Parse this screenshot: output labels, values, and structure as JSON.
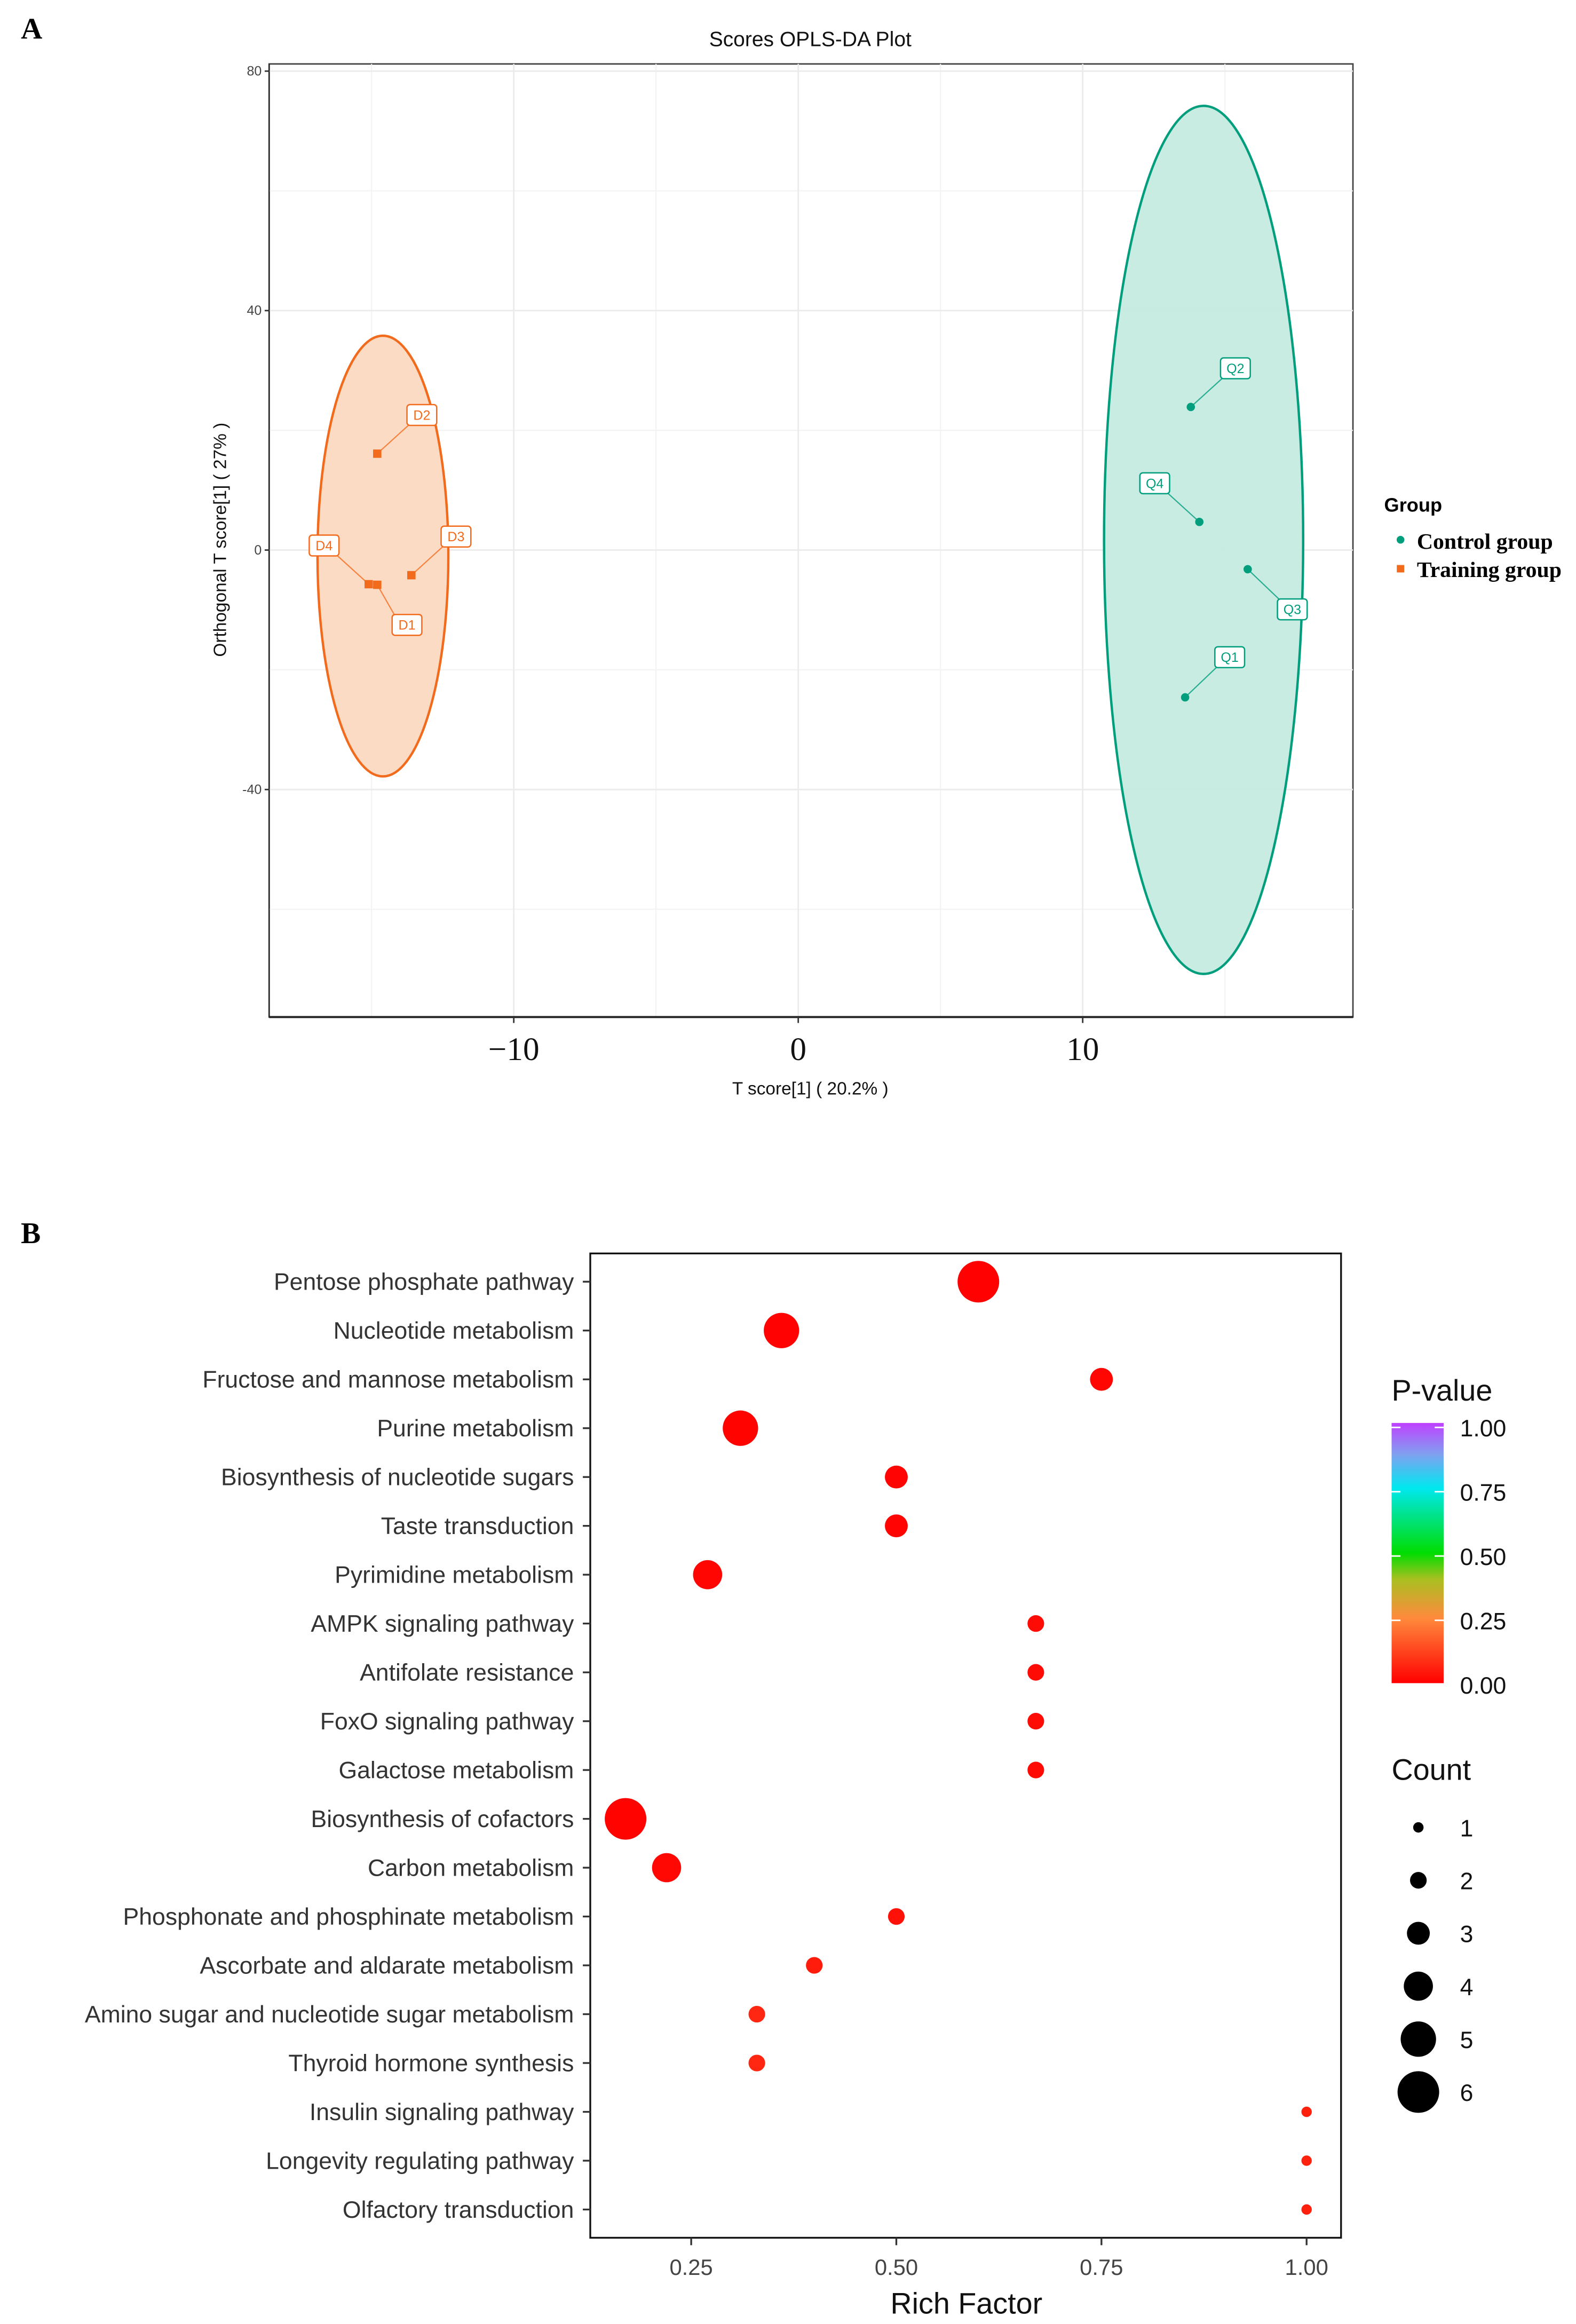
{
  "panel_labels": {
    "a": "A",
    "b": "B"
  },
  "chart_data": [
    {
      "type": "scatter",
      "title": "Scores OPLS-DA Plot",
      "xlabel": "T score[1] ( 20.2% )",
      "ylabel": "Orthogonal T score[1] ( 27% )",
      "xlim": [
        -18.6,
        19.5
      ],
      "ylim": [
        -78,
        81.2
      ],
      "x_ticks": [
        -10,
        0,
        10
      ],
      "x_tick_labels": [
        "−10",
        "0",
        "10"
      ],
      "y_ticks": [
        80,
        40,
        0,
        -40
      ],
      "y_tick_labels": [
        "80",
        "40",
        "0",
        "-40"
      ],
      "grid": true,
      "legend": {
        "title": "Group",
        "placement": "right",
        "entries": [
          "Control group",
          "Training group"
        ]
      },
      "series": [
        {
          "name": "Control group",
          "color": "#009e7d",
          "fill": "#c5ebe0",
          "marker": "circle",
          "ellipse": {
            "cx": 14.25,
            "cy": 1.7,
            "rx": 3.5,
            "ry": 72.5
          },
          "points": [
            {
              "label": "Q1",
              "x": 13.6,
              "y": -24.6
            },
            {
              "label": "Q2",
              "x": 13.8,
              "y": 23.9
            },
            {
              "label": "Q3",
              "x": 15.8,
              "y": -3.2
            },
            {
              "label": "Q4",
              "x": 14.1,
              "y": 4.7
            }
          ]
        },
        {
          "name": "Training group",
          "color": "#f26b1d",
          "fill": "#fcd9c2",
          "marker": "square",
          "ellipse": {
            "cx": -14.6,
            "cy": -1.0,
            "rx": 2.3,
            "ry": 36.8
          },
          "points": [
            {
              "label": "D1",
              "x": -14.8,
              "y": -5.8
            },
            {
              "label": "D2",
              "x": -14.8,
              "y": 16.1
            },
            {
              "label": "D3",
              "x": -13.6,
              "y": -4.2
            },
            {
              "label": "D4",
              "x": -15.1,
              "y": -5.7
            }
          ]
        }
      ]
    },
    {
      "type": "scatter",
      "subtype": "bubble",
      "xlabel": "Rich Factor",
      "ylabel": "",
      "xlim": [
        0.127,
        1.042
      ],
      "x_ticks": [
        0.25,
        0.5,
        0.75,
        1.0
      ],
      "x_tick_labels": [
        "0.25",
        "0.50",
        "0.75",
        "1.00"
      ],
      "grid": false,
      "color_legend": {
        "title": "P-value",
        "ticks": [
          "1.00",
          "0.75",
          "0.50",
          "0.25",
          "0.00"
        ],
        "colors": [
          "#ff0000",
          "#ff7a3c",
          "#00e000",
          "#00e8f0",
          "#c040ff"
        ]
      },
      "size_legend": {
        "title": "Count",
        "values": [
          1,
          2,
          3,
          4,
          5,
          6
        ],
        "labels": [
          "1",
          "2",
          "3",
          "4",
          "5",
          "6"
        ]
      },
      "categories": [
        "Pentose phosphate pathway",
        "Nucleotide metabolism",
        "Fructose and mannose metabolism",
        "Purine metabolism",
        "Biosynthesis of nucleotide sugars",
        "Taste transduction",
        "Pyrimidine metabolism",
        "AMPK signaling pathway",
        "Antifolate resistance",
        "FoxO signaling pathway",
        "Galactose metabolism",
        "Biosynthesis of cofactors",
        "Carbon metabolism",
        "Phosphonate and phosphinate metabolism",
        "Ascorbate and aldarate metabolism",
        "Amino sugar and nucleotide sugar metabolism",
        "Thyroid hormone synthesis",
        "Insulin signaling pathway",
        "Longevity regulating pathway",
        "Olfactory transduction"
      ],
      "rich_factor": [
        0.6,
        0.36,
        0.75,
        0.31,
        0.5,
        0.5,
        0.27,
        0.67,
        0.67,
        0.67,
        0.67,
        0.17,
        0.22,
        0.5,
        0.4,
        0.33,
        0.33,
        1.0,
        1.0,
        1.0
      ],
      "count": [
        6,
        5,
        3,
        5,
        3,
        3,
        4,
        2,
        2,
        2,
        2,
        6,
        4,
        2,
        2,
        2,
        2,
        1,
        1,
        1
      ],
      "p_value": [
        0.002,
        0.003,
        0.01,
        0.005,
        0.008,
        0.008,
        0.01,
        0.02,
        0.02,
        0.02,
        0.02,
        0.005,
        0.015,
        0.03,
        0.05,
        0.07,
        0.07,
        0.06,
        0.06,
        0.06
      ]
    }
  ]
}
